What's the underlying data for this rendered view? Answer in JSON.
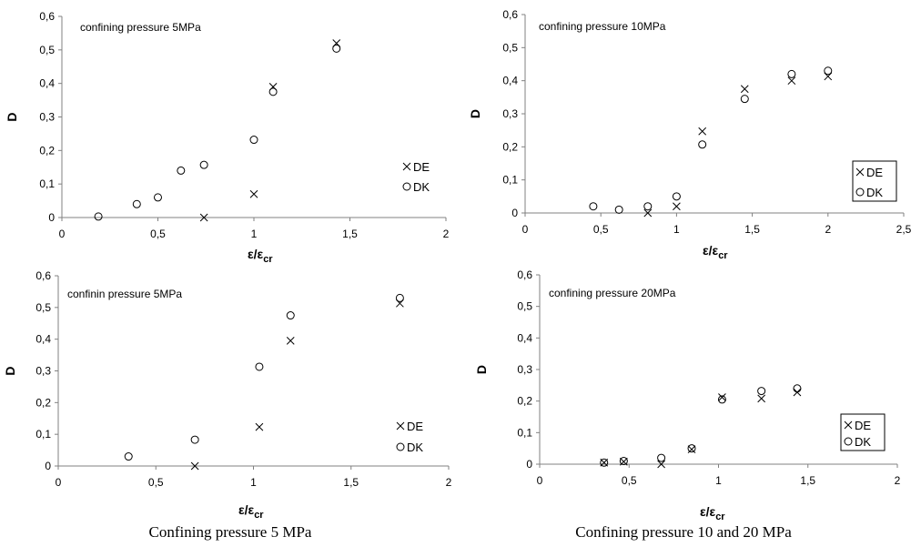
{
  "chart_data": [
    {
      "type": "scatter",
      "annotation": "confining pressure 5MPa",
      "xlabel": "ε/ε",
      "xlabel_sub": "cr",
      "ylabel": "D",
      "xlim": [
        0,
        2
      ],
      "ylim": [
        0,
        0.6
      ],
      "xticks": [
        "0",
        "0,5",
        "1",
        "1,5",
        "2"
      ],
      "yticks": [
        "0",
        "0,1",
        "0,2",
        "0,3",
        "0,4",
        "0,5",
        "0,6"
      ],
      "legend_position": "right-middle",
      "legend_boxed": false,
      "grid": false,
      "series": [
        {
          "name": "DE",
          "marker": "x",
          "x": [
            0.74,
            1.0,
            1.1,
            1.43
          ],
          "y": [
            0.0,
            0.07,
            0.39,
            0.52
          ]
        },
        {
          "name": "DK",
          "marker": "o",
          "x": [
            0.19,
            0.39,
            0.5,
            0.62,
            0.74,
            1.0,
            1.1,
            1.43
          ],
          "y": [
            0.003,
            0.04,
            0.06,
            0.14,
            0.157,
            0.232,
            0.375,
            0.504
          ]
        }
      ]
    },
    {
      "type": "scatter",
      "annotation": "confining pressure 10MPa",
      "xlabel": "ε/ε",
      "xlabel_sub": "cr",
      "ylabel": "D",
      "xlim": [
        0,
        2.5
      ],
      "ylim": [
        0,
        0.6
      ],
      "xticks": [
        "0",
        "0,5",
        "1",
        "1,5",
        "2",
        "2,5"
      ],
      "yticks": [
        "0",
        "0,1",
        "0,2",
        "0,3",
        "0,4",
        "0,5",
        "0,6"
      ],
      "legend_position": "right-middle",
      "legend_boxed": true,
      "grid": false,
      "series": [
        {
          "name": "DE",
          "marker": "x",
          "x": [
            0.81,
            1.0,
            1.17,
            1.45,
            1.76,
            2.0
          ],
          "y": [
            0.0,
            0.02,
            0.247,
            0.375,
            0.4,
            0.413
          ]
        },
        {
          "name": "DK",
          "marker": "o",
          "x": [
            0.45,
            0.62,
            0.81,
            1.0,
            1.17,
            1.45,
            1.76,
            2.0
          ],
          "y": [
            0.02,
            0.01,
            0.02,
            0.05,
            0.207,
            0.345,
            0.42,
            0.43
          ]
        }
      ]
    },
    {
      "type": "scatter",
      "annotation": "confinin pressure 5MPa",
      "xlabel": "ε/ε",
      "xlabel_sub": "cr",
      "ylabel": "D",
      "xlim": [
        0,
        2
      ],
      "ylim": [
        0,
        0.6
      ],
      "xticks": [
        "0",
        "0,5",
        "1",
        "1,5",
        "2"
      ],
      "yticks": [
        "0",
        "0,1",
        "0,2",
        "0,3",
        "0,4",
        "0,5",
        "0,6"
      ],
      "legend_position": "right-middle",
      "legend_boxed": false,
      "grid": false,
      "series": [
        {
          "name": "DE",
          "marker": "x",
          "x": [
            0.7,
            1.03,
            1.19,
            1.75
          ],
          "y": [
            0.0,
            0.123,
            0.395,
            0.513
          ]
        },
        {
          "name": "DK",
          "marker": "o",
          "x": [
            0.36,
            0.7,
            1.03,
            1.19,
            1.75
          ],
          "y": [
            0.03,
            0.083,
            0.313,
            0.475,
            0.53
          ]
        }
      ]
    },
    {
      "type": "scatter",
      "annotation": "confining pressure 20MPa",
      "xlabel": "ε/ε",
      "xlabel_sub": "cr",
      "ylabel": "D",
      "xlim": [
        0,
        2
      ],
      "ylim": [
        0,
        0.6
      ],
      "xticks": [
        "0",
        "0,5",
        "1",
        "1,5",
        "2"
      ],
      "yticks": [
        "0",
        "0,1",
        "0,2",
        "0,3",
        "0,4",
        "0,5",
        "0,6"
      ],
      "legend_position": "right-middle",
      "legend_boxed": true,
      "grid": false,
      "series": [
        {
          "name": "DE",
          "marker": "x",
          "x": [
            0.36,
            0.47,
            0.68,
            0.85,
            1.02,
            1.24,
            1.44
          ],
          "y": [
            0.005,
            0.008,
            0.0,
            0.047,
            0.212,
            0.208,
            0.228
          ]
        },
        {
          "name": "DK",
          "marker": "o",
          "x": [
            0.36,
            0.47,
            0.68,
            0.85,
            1.02,
            1.24,
            1.44
          ],
          "y": [
            0.005,
            0.01,
            0.02,
            0.05,
            0.205,
            0.232,
            0.24
          ]
        }
      ]
    }
  ],
  "captions": {
    "left": "Confining pressure 5 MPa",
    "right": "Confining pressure 10 and 20 MPa"
  }
}
